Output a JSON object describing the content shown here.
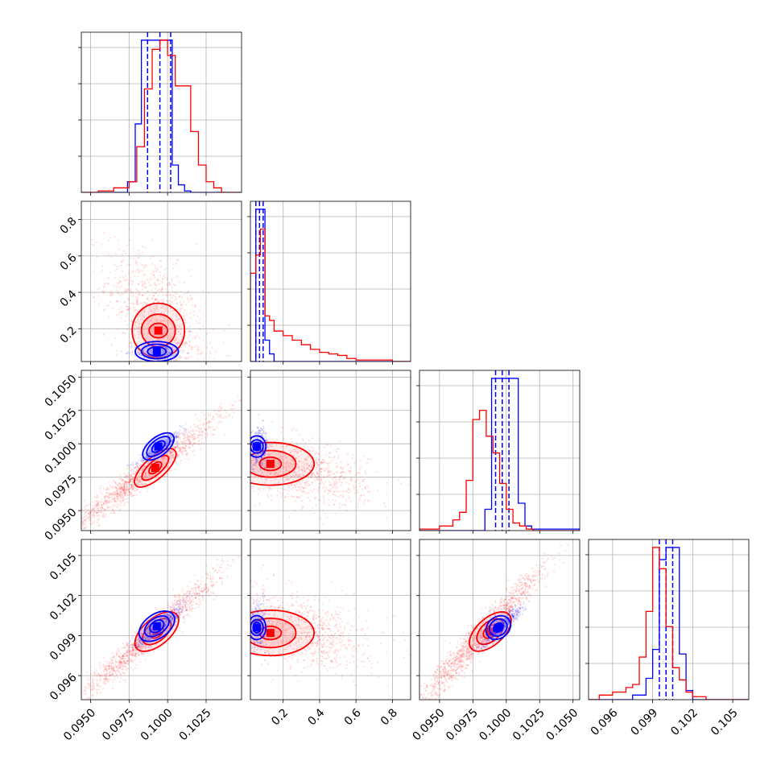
{
  "figure": {
    "kind": "corner plot",
    "series_colors": [
      "#0000ff",
      "#ff0000"
    ],
    "shading_colors": [
      "#8c8cff",
      "#ff8c8c"
    ],
    "grid": true
  },
  "chart_data": {
    "type": "corner",
    "grid": true,
    "params": [
      {
        "range": [
          0.0944,
          0.1048
        ],
        "ticks": [
          "0.0950",
          "0.0975",
          "0.1000",
          "0.1025"
        ],
        "tick_values": [
          0.095,
          0.0975,
          0.1,
          0.1025
        ]
      },
      {
        "range": [
          0.02,
          0.9
        ],
        "ticks": [
          "0.2",
          "0.4",
          "0.6",
          "0.8"
        ],
        "tick_values": [
          0.2,
          0.4,
          0.6,
          0.8
        ]
      },
      {
        "range": [
          0.0935,
          0.1055
        ],
        "ticks": [
          "0.0950",
          "0.0975",
          "0.1000",
          "0.1025",
          "0.1050"
        ],
        "tick_values": [
          0.095,
          0.0975,
          0.1,
          0.1025,
          0.105
        ]
      },
      {
        "range": [
          0.0942,
          0.1062
        ],
        "ticks": [
          "0.096",
          "0.099",
          "0.102",
          "0.105"
        ],
        "tick_values": [
          0.096,
          0.099,
          0.102,
          0.105
        ]
      }
    ],
    "series": [
      {
        "color": "#0000ff",
        "quantiles": [
          [
            0.0987,
            0.0995,
            0.1002
          ],
          [
            0.05,
            0.07,
            0.09
          ],
          [
            0.0992,
            0.0997,
            0.1002
          ],
          [
            0.0995,
            0.1,
            0.1005
          ]
        ],
        "hist": [
          {
            "edges": [
              0.0944,
              0.0974,
              0.0979,
              0.0983,
              0.0987,
              0.0991,
              0.0995,
              0.0999,
              0.1003,
              0.1007,
              0.1011,
              0.1015,
              0.1048
            ],
            "values": [
              0,
              7,
              45,
              100,
              100,
              100,
              100,
              100,
              18,
              5,
              1,
              0
            ]
          },
          {
            "edges": [
              0.02,
              0.05,
              0.075,
              0.1,
              0.125,
              0.15,
              0.9
            ],
            "values": [
              0,
              100,
              100,
              14,
              5,
              0
            ]
          },
          {
            "edges": [
              0.0935,
              0.0984,
              0.0989,
              0.0994,
              0.0999,
              0.1004,
              0.1009,
              0.1014,
              0.1019,
              0.1055
            ],
            "values": [
              0,
              14,
              100,
              100,
              100,
              100,
              18,
              3,
              1
            ]
          },
          {
            "edges": [
              0.0942,
              0.0975,
              0.0985,
              0.099,
              0.0995,
              0.1,
              0.1005,
              0.101,
              0.1015,
              0.102,
              0.1062
            ],
            "values": [
              0,
              3,
              14,
              33,
              92,
              100,
              100,
              30,
              6,
              0
            ]
          }
        ],
        "samples": [
          {
            "x": 0,
            "y": 1,
            "cx": 0.0995,
            "cy": 0.07,
            "sx": 0.0008,
            "sy": 0.025,
            "rho": 0.0,
            "n": 320,
            "alpha": 0.13
          },
          {
            "x": 0,
            "y": 2,
            "cx": 0.0995,
            "cy": 0.0997,
            "sx": 0.0007,
            "sy": 0.0006,
            "rho": 0.92,
            "n": 520,
            "alpha": 0.13
          },
          {
            "x": 1,
            "y": 2,
            "cx": 0.07,
            "cy": 0.0997,
            "sx": 0.025,
            "sy": 0.0008,
            "rho": 0.0,
            "n": 320,
            "alpha": 0.13
          },
          {
            "x": 0,
            "y": 3,
            "cx": 0.0995,
            "cy": 0.0997,
            "sx": 0.0008,
            "sy": 0.0008,
            "rho": 0.9,
            "n": 520,
            "alpha": 0.13
          },
          {
            "x": 1,
            "y": 3,
            "cx": 0.07,
            "cy": 0.0997,
            "sx": 0.025,
            "sy": 0.0009,
            "rho": 0.0,
            "n": 320,
            "alpha": 0.13
          },
          {
            "x": 2,
            "y": 3,
            "cx": 0.0997,
            "cy": 0.0997,
            "sx": 0.0007,
            "sy": 0.0007,
            "rho": 0.9,
            "n": 520,
            "alpha": 0.13
          }
        ],
        "contours": [
          {
            "x": 0,
            "y": 1,
            "cx": 0.0993,
            "cy": 0.075,
            "rx": [
              0.0006,
              0.001,
              0.0014
            ],
            "ry": [
              0.025,
              0.04,
              0.055
            ],
            "angle": 0
          },
          {
            "x": 0,
            "y": 2,
            "cx": 0.0994,
            "cy": 0.0998,
            "rx": [
              0.0005,
              0.0009,
              0.0012
            ],
            "ry": [
              0.0003,
              0.0005,
              0.0007
            ],
            "angle": 38
          },
          {
            "x": 1,
            "y": 2,
            "cx": 0.055,
            "cy": 0.0998,
            "rx": [
              0.02,
              0.035,
              0.05
            ],
            "ry": [
              0.0003,
              0.0005,
              0.0008
            ],
            "angle": 0
          },
          {
            "x": 0,
            "y": 3,
            "cx": 0.0993,
            "cy": 0.0997,
            "rx": [
              0.0005,
              0.0009,
              0.0013
            ],
            "ry": [
              0.0004,
              0.0006,
              0.0009
            ],
            "angle": 35
          },
          {
            "x": 1,
            "y": 3,
            "cx": 0.055,
            "cy": 0.0996,
            "rx": [
              0.02,
              0.035,
              0.05
            ],
            "ry": [
              0.0004,
              0.0006,
              0.0009
            ],
            "angle": 0
          },
          {
            "x": 2,
            "y": 3,
            "cx": 0.0994,
            "cy": 0.0996,
            "rx": [
              0.0004,
              0.0007,
              0.001
            ],
            "ry": [
              0.0003,
              0.0006,
              0.0008
            ],
            "angle": 40
          }
        ]
      },
      {
        "color": "#ff0000",
        "quantiles": [],
        "hist": [
          {
            "edges": [
              0.0944,
              0.0955,
              0.0965,
              0.0975,
              0.098,
              0.0985,
              0.099,
              0.0995,
              0.1,
              0.1005,
              0.1015,
              0.102,
              0.1025,
              0.103,
              0.1035,
              0.1048
            ],
            "values": [
              0,
              1,
              3,
              7,
              30,
              68,
              94,
              100,
              90,
              70,
              40,
              18,
              7,
              3,
              0
            ]
          },
          {
            "edges": [
              0.02,
              0.05,
              0.075,
              0.1,
              0.125,
              0.15,
              0.2,
              0.25,
              0.3,
              0.35,
              0.4,
              0.45,
              0.5,
              0.55,
              0.6,
              0.7,
              0.8,
              0.9
            ],
            "values": [
              58,
              70,
              87,
              30,
              27,
              20,
              17,
              14,
              11,
              8,
              6,
              5,
              4,
              2,
              1,
              1,
              0
            ]
          },
          {
            "edges": [
              0.0935,
              0.095,
              0.096,
              0.0965,
              0.097,
              0.0975,
              0.098,
              0.0985,
              0.099,
              0.0995,
              0.1,
              0.1005,
              0.101,
              0.1015,
              0.102,
              0.1055
            ],
            "values": [
              1,
              3,
              7,
              12,
              33,
              73,
              79,
              62,
              51,
              31,
              14,
              5,
              3,
              1,
              0
            ]
          },
          {
            "edges": [
              0.0942,
              0.095,
              0.096,
              0.097,
              0.0975,
              0.098,
              0.0985,
              0.099,
              0.0995,
              0.1,
              0.1005,
              0.101,
              0.1015,
              0.102,
              0.103,
              0.1062
            ],
            "values": [
              0,
              3,
              5,
              8,
              10,
              28,
              58,
              100,
              86,
              48,
              21,
              13,
              5,
              2,
              0
            ]
          }
        ],
        "samples": [
          {
            "x": 0,
            "y": 1,
            "cx": 0.0992,
            "cy": 0.28,
            "sx": 0.0016,
            "sy": 0.18,
            "rho": -0.5,
            "n": 900,
            "alpha": 0.12
          },
          {
            "x": 0,
            "y": 2,
            "cx": 0.0985,
            "cy": 0.0978,
            "sx": 0.0025,
            "sy": 0.0022,
            "rho": 0.97,
            "n": 1400,
            "alpha": 0.12
          },
          {
            "x": 1,
            "y": 2,
            "cx": 0.3,
            "cy": 0.0979,
            "sx": 0.18,
            "sy": 0.0012,
            "rho": -0.35,
            "n": 900,
            "alpha": 0.12
          },
          {
            "x": 0,
            "y": 3,
            "cx": 0.0988,
            "cy": 0.099,
            "sx": 0.0022,
            "sy": 0.0023,
            "rho": 0.97,
            "n": 1400,
            "alpha": 0.12
          },
          {
            "x": 1,
            "y": 3,
            "cx": 0.3,
            "cy": 0.0993,
            "sx": 0.18,
            "sy": 0.0014,
            "rho": -0.35,
            "n": 900,
            "alpha": 0.12
          },
          {
            "x": 2,
            "y": 3,
            "cx": 0.0982,
            "cy": 0.0991,
            "sx": 0.0024,
            "sy": 0.0026,
            "rho": 0.97,
            "n": 1400,
            "alpha": 0.12
          }
        ],
        "contours": [
          {
            "x": 0,
            "y": 1,
            "cx": 0.0994,
            "cy": 0.19,
            "rx": [
              0.0006,
              0.0011,
              0.0017
            ],
            "ry": [
              0.04,
              0.09,
              0.15
            ],
            "angle": 0
          },
          {
            "x": 0,
            "y": 2,
            "cx": 0.0992,
            "cy": 0.0982,
            "rx": [
              0.0005,
              0.0011,
              0.0017
            ],
            "ry": [
              0.0003,
              0.0005,
              0.0008
            ],
            "angle": 42
          },
          {
            "x": 1,
            "y": 2,
            "cx": 0.13,
            "cy": 0.0985,
            "rx": [
              0.06,
              0.14,
              0.24
            ],
            "ry": [
              0.0005,
              0.001,
              0.0016
            ],
            "angle": 0
          },
          {
            "x": 0,
            "y": 3,
            "cx": 0.0993,
            "cy": 0.0993,
            "rx": [
              0.0005,
              0.0011,
              0.0017
            ],
            "ry": [
              0.0004,
              0.0007,
              0.001
            ],
            "angle": 40
          },
          {
            "x": 1,
            "y": 3,
            "cx": 0.13,
            "cy": 0.0992,
            "rx": [
              0.06,
              0.14,
              0.24
            ],
            "ry": [
              0.0005,
              0.0011,
              0.0017
            ],
            "angle": 0
          },
          {
            "x": 2,
            "y": 3,
            "cx": 0.0988,
            "cy": 0.0993,
            "rx": [
              0.0006,
              0.0012,
              0.0019
            ],
            "ry": [
              0.0004,
              0.0007,
              0.001
            ],
            "angle": 42
          }
        ]
      }
    ]
  }
}
